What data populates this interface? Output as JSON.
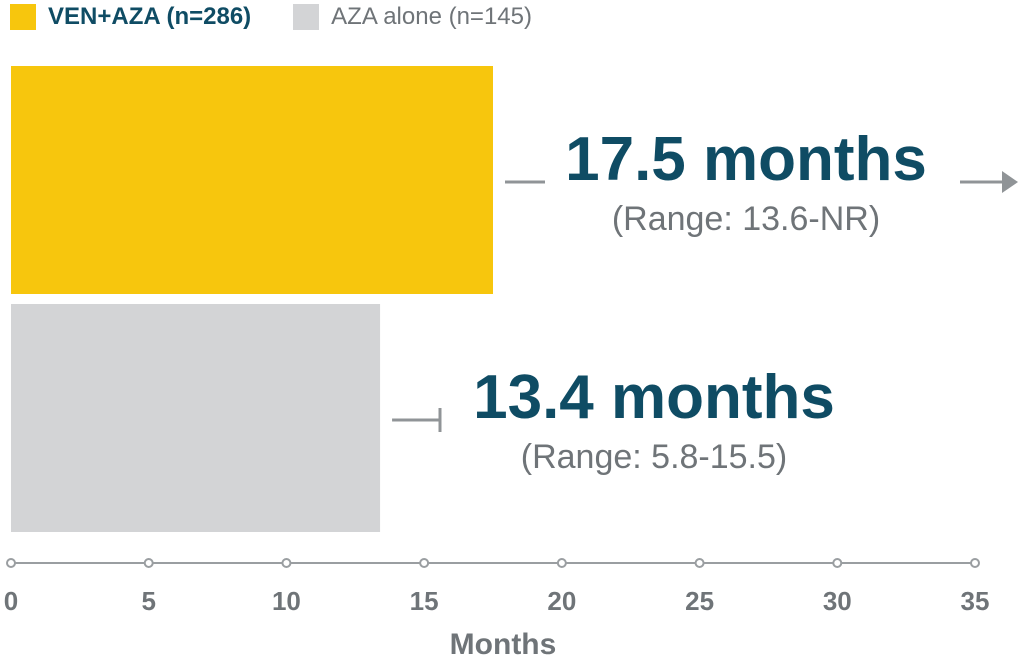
{
  "legend": [
    {
      "label": "VEN+AZA (n=286)",
      "color": "#f7c60d"
    },
    {
      "label": "AZA alone (n=145)",
      "color": "#d3d4d6"
    }
  ],
  "chart_data": {
    "type": "bar",
    "orientation": "horizontal",
    "series": [
      {
        "name": "VEN+AZA (n=286)",
        "value": 17.5,
        "color": "#f7c60d",
        "annotation": "17.5 months",
        "range_label": "(Range: 13.6-NR)",
        "range_low": 13.6,
        "range_high": "NR"
      },
      {
        "name": "AZA alone (n=145)",
        "value": 13.4,
        "color": "#d3d4d6",
        "annotation": "13.4 months",
        "range_label": "(Range: 5.8-15.5)",
        "range_low": 5.8,
        "range_high": 15.5
      }
    ],
    "xlim": [
      0,
      35
    ],
    "xticks": [
      "0",
      "5",
      "10",
      "15",
      "20",
      "25",
      "30",
      "35"
    ],
    "xlabel": "Months",
    "grid": false,
    "legend_position": "top-left",
    "colors": {
      "annotation": "#0f4c64",
      "range_text": "#6f7478",
      "axis": "#9a9ea1",
      "whisker": "#909497"
    }
  }
}
